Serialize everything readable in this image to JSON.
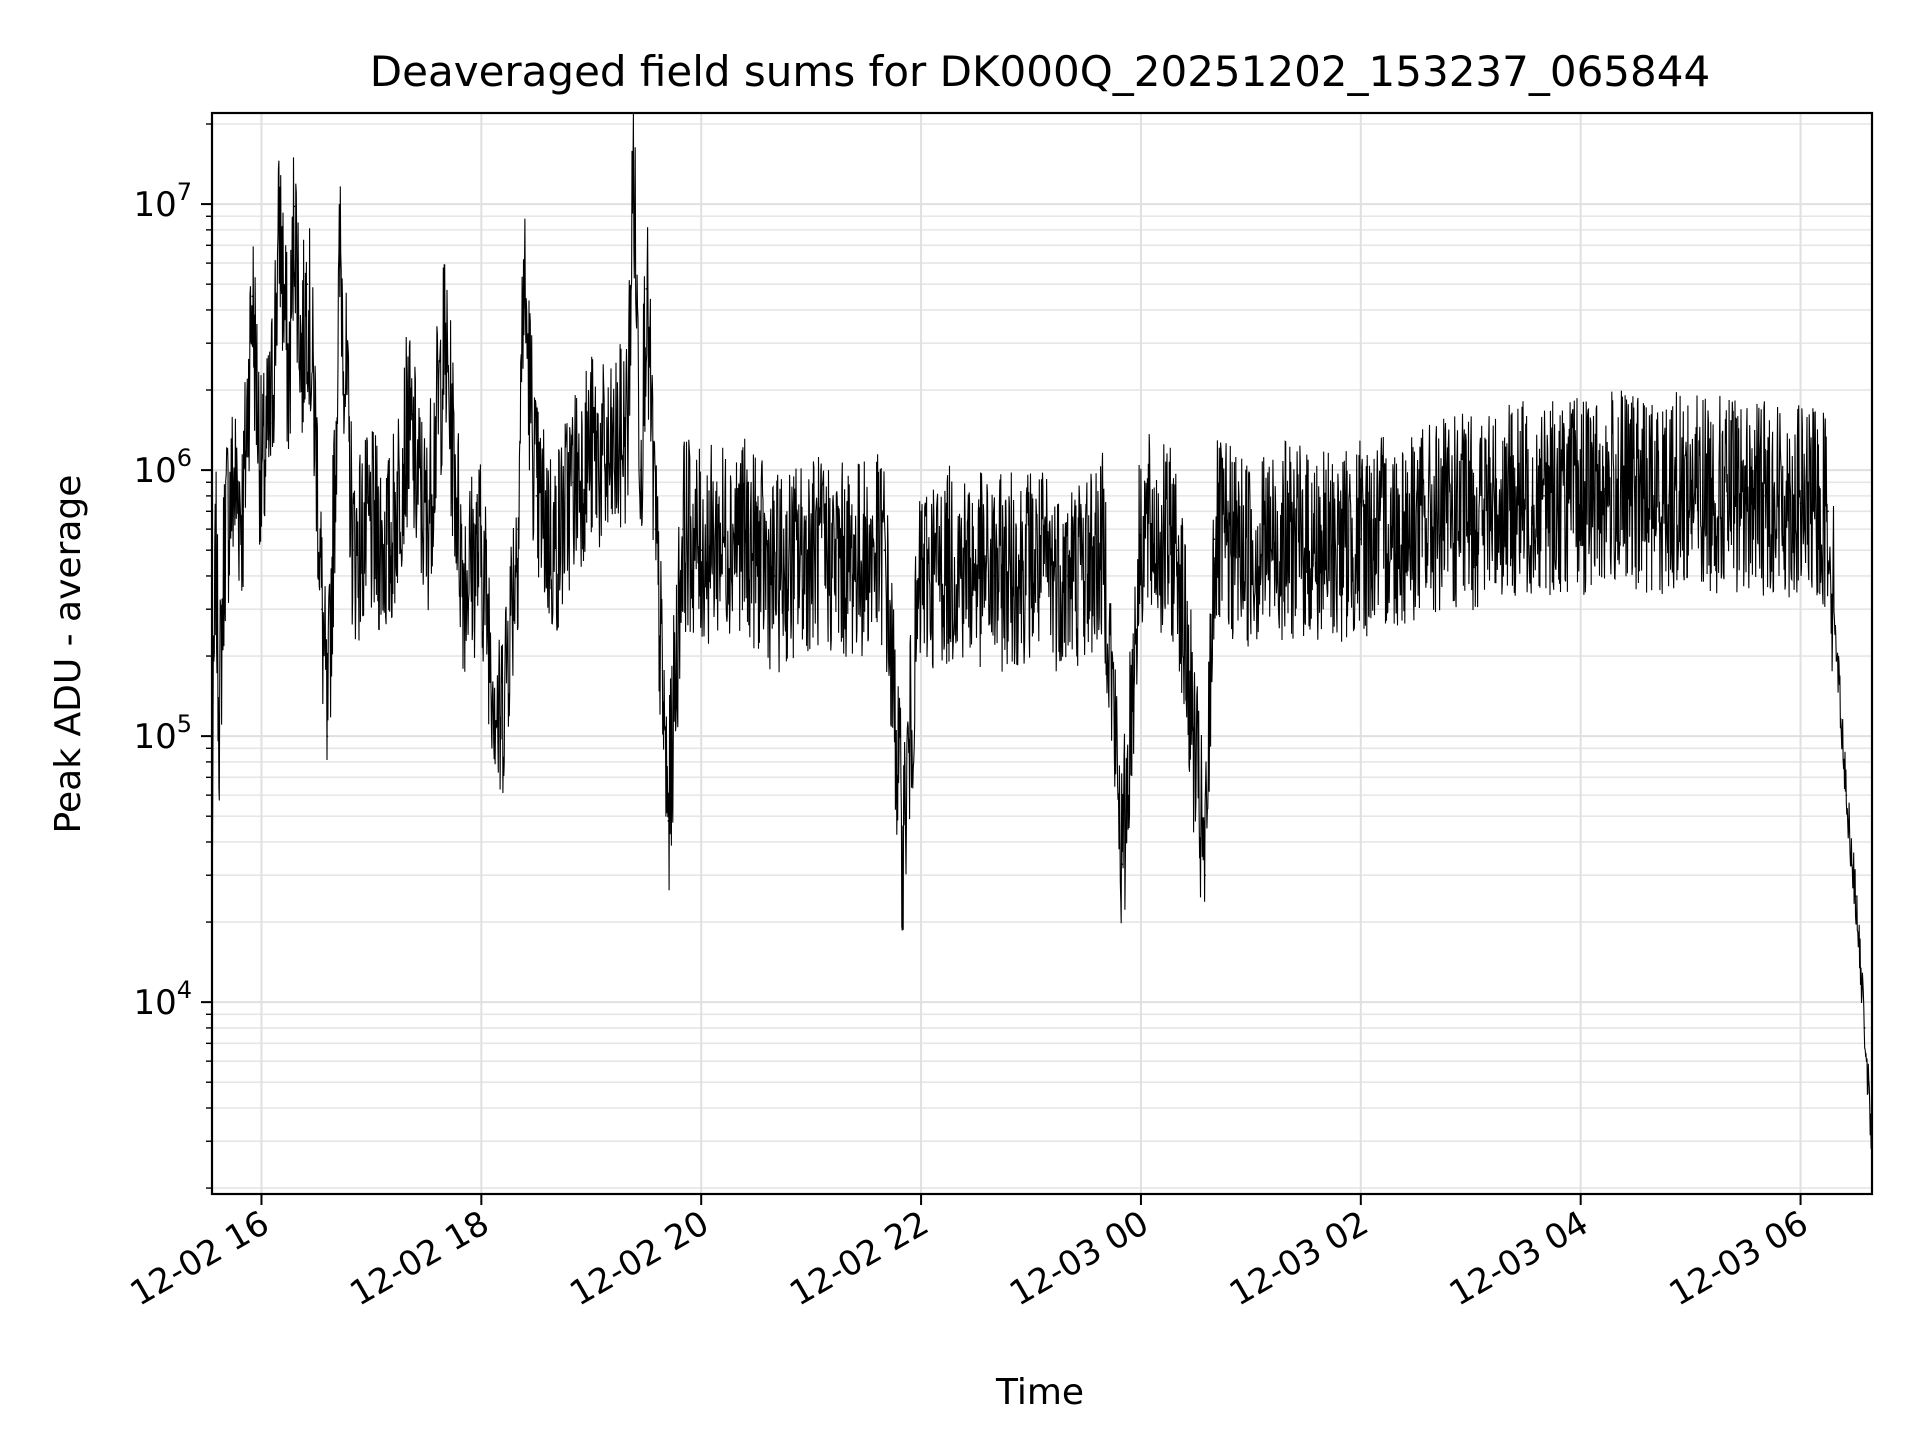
{
  "chart_data": {
    "type": "line",
    "title": "Deaveraged field sums for DK000Q_20251202_153237_065844",
    "xlabel": "Time",
    "ylabel": "Peak ADU - average",
    "yscale": "log",
    "ylim": [
      1900,
      22000000
    ],
    "xlim": [
      "2025-12-02 15:33",
      "2025-12-03 06:39"
    ],
    "grid": true,
    "line_color": "#000000",
    "x_ticks": [
      {
        "value": "2025-12-02 16:00",
        "label": "12-02 16"
      },
      {
        "value": "2025-12-02 18:00",
        "label": "12-02 18"
      },
      {
        "value": "2025-12-02 20:00",
        "label": "12-02 20"
      },
      {
        "value": "2025-12-02 22:00",
        "label": "12-02 22"
      },
      {
        "value": "2025-12-03 00:00",
        "label": "12-03 00"
      },
      {
        "value": "2025-12-03 02:00",
        "label": "12-03 02"
      },
      {
        "value": "2025-12-03 04:00",
        "label": "12-03 04"
      },
      {
        "value": "2025-12-03 06:00",
        "label": "12-03 06"
      }
    ],
    "y_ticks": [
      {
        "value": 10000,
        "base": "10",
        "exp": "4"
      },
      {
        "value": 100000,
        "base": "10",
        "exp": "5"
      },
      {
        "value": 1000000,
        "base": "10",
        "exp": "6"
      },
      {
        "value": 10000000,
        "base": "10",
        "exp": "7"
      }
    ],
    "series": [
      {
        "name": "",
        "points": [
          [
            "2025-12-02 15:33",
            40000
          ],
          [
            "2025-12-02 15:35",
            500000
          ],
          [
            "2025-12-02 15:37",
            120000
          ],
          [
            "2025-12-02 15:40",
            600000
          ],
          [
            "2025-12-02 15:45",
            900000
          ],
          [
            "2025-12-02 15:50",
            700000
          ],
          [
            "2025-12-02 15:55",
            4500000
          ],
          [
            "2025-12-02 16:00",
            900000
          ],
          [
            "2025-12-02 16:05",
            1500000
          ],
          [
            "2025-12-02 16:10",
            8500000
          ],
          [
            "2025-12-02 16:15",
            2000000
          ],
          [
            "2025-12-02 16:18",
            9800000
          ],
          [
            "2025-12-02 16:22",
            2500000
          ],
          [
            "2025-12-02 16:25",
            5000000
          ],
          [
            "2025-12-02 16:30",
            1200000
          ],
          [
            "2025-12-02 16:33",
            300000
          ],
          [
            "2025-12-02 16:36",
            100000
          ],
          [
            "2025-12-02 16:40",
            900000
          ],
          [
            "2025-12-02 16:43",
            6700000
          ],
          [
            "2025-12-02 16:50",
            500000
          ],
          [
            "2025-12-02 17:00",
            600000
          ],
          [
            "2025-12-02 17:10",
            500000
          ],
          [
            "2025-12-02 17:20",
            1500000
          ],
          [
            "2025-12-02 17:30",
            600000
          ],
          [
            "2025-12-02 17:40",
            3000000
          ],
          [
            "2025-12-02 17:50",
            400000
          ],
          [
            "2025-12-02 18:00",
            500000
          ],
          [
            "2025-12-02 18:10",
            100000
          ],
          [
            "2025-12-02 18:20",
            600000
          ],
          [
            "2025-12-02 18:23",
            5300000
          ],
          [
            "2025-12-02 18:30",
            800000
          ],
          [
            "2025-12-02 18:40",
            500000
          ],
          [
            "2025-12-02 18:50",
            900000
          ],
          [
            "2025-12-02 19:00",
            1200000
          ],
          [
            "2025-12-02 19:10",
            1000000
          ],
          [
            "2025-12-02 19:20",
            1500000
          ],
          [
            "2025-12-02 19:23",
            14500000
          ],
          [
            "2025-12-02 19:27",
            1000000
          ],
          [
            "2025-12-02 19:30",
            4800000
          ],
          [
            "2025-12-02 19:35",
            600000
          ],
          [
            "2025-12-02 19:42",
            48000
          ],
          [
            "2025-12-02 19:50",
            600000
          ],
          [
            "2025-12-02 20:00",
            500000
          ],
          [
            "2025-12-02 20:20",
            600000
          ],
          [
            "2025-12-02 20:40",
            400000
          ],
          [
            "2025-12-02 21:00",
            500000
          ],
          [
            "2025-12-02 21:20",
            450000
          ],
          [
            "2025-12-02 21:40",
            500000
          ],
          [
            "2025-12-02 21:50",
            40000
          ],
          [
            "2025-12-02 22:00",
            400000
          ],
          [
            "2025-12-02 22:20",
            450000
          ],
          [
            "2025-12-02 22:40",
            400000
          ],
          [
            "2025-12-02 23:00",
            450000
          ],
          [
            "2025-12-02 23:20",
            400000
          ],
          [
            "2025-12-02 23:40",
            500000
          ],
          [
            "2025-12-02 23:50",
            33000
          ],
          [
            "2025-12-03 00:00",
            600000
          ],
          [
            "2025-12-03 00:20",
            500000
          ],
          [
            "2025-12-03 00:35",
            30000
          ],
          [
            "2025-12-03 00:40",
            550000
          ],
          [
            "2025-12-03 01:00",
            500000
          ],
          [
            "2025-12-03 01:20",
            550000
          ],
          [
            "2025-12-03 01:40",
            500000
          ],
          [
            "2025-12-03 02:00",
            550000
          ],
          [
            "2025-12-03 02:20",
            600000
          ],
          [
            "2025-12-03 02:40",
            650000
          ],
          [
            "2025-12-03 03:00",
            700000
          ],
          [
            "2025-12-03 03:20",
            750000
          ],
          [
            "2025-12-03 03:40",
            800000
          ],
          [
            "2025-12-03 04:00",
            800000
          ],
          [
            "2025-12-03 04:20",
            850000
          ],
          [
            "2025-12-03 04:40",
            800000
          ],
          [
            "2025-12-03 05:00",
            850000
          ],
          [
            "2025-12-03 05:20",
            800000
          ],
          [
            "2025-12-03 05:40",
            800000
          ],
          [
            "2025-12-03 06:00",
            750000
          ],
          [
            "2025-12-03 06:15",
            700000
          ],
          [
            "2025-12-03 06:20",
            200000
          ],
          [
            "2025-12-03 06:25",
            60000
          ],
          [
            "2025-12-03 06:30",
            25000
          ],
          [
            "2025-12-03 06:35",
            8000
          ],
          [
            "2025-12-03 06:39",
            2800
          ]
        ]
      }
    ]
  }
}
